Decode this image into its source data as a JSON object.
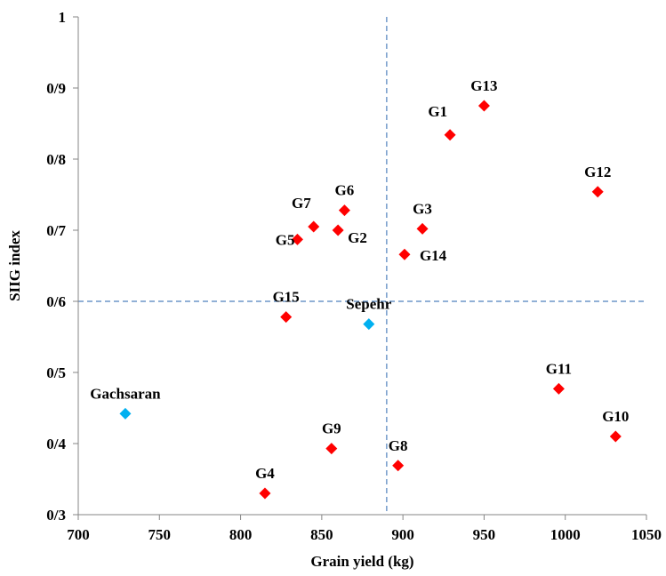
{
  "chart_data": {
    "type": "scatter",
    "xlabel": "Grain yield (kg)",
    "ylabel": "SIIG index",
    "xlim": [
      700,
      1050
    ],
    "ylim": [
      0.3,
      1
    ],
    "x_ticks": [
      700,
      750,
      800,
      850,
      900,
      950,
      1000,
      1050
    ],
    "y_ticks": [
      {
        "value": 0.3,
        "label": "0/3"
      },
      {
        "value": 0.4,
        "label": "0/4"
      },
      {
        "value": 0.5,
        "label": "0/5"
      },
      {
        "value": 0.6,
        "label": "0/6"
      },
      {
        "value": 0.7,
        "label": "0/7"
      },
      {
        "value": 0.8,
        "label": "0/8"
      },
      {
        "value": 0.9,
        "label": "0/9"
      },
      {
        "value": 1,
        "label": "1"
      }
    ],
    "reference_lines": {
      "x": 890,
      "y": 0.6
    },
    "grid": false,
    "colors": {
      "genotype": "#ff0000",
      "check": "#00b0f0",
      "reference_line": "#4f81bd"
    },
    "points": [
      {
        "label": "G1",
        "x": 929,
        "y": 0.834,
        "group": "genotype",
        "label_pos": "above-left"
      },
      {
        "label": "G2",
        "x": 860,
        "y": 0.7,
        "group": "genotype",
        "label_pos": "below-right"
      },
      {
        "label": "G3",
        "x": 912,
        "y": 0.702,
        "group": "genotype",
        "label_pos": "above"
      },
      {
        "label": "G4",
        "x": 815,
        "y": 0.33,
        "group": "genotype",
        "label_pos": "above"
      },
      {
        "label": "G5",
        "x": 835,
        "y": 0.687,
        "group": "genotype",
        "label_pos": "left"
      },
      {
        "label": "G6",
        "x": 864,
        "y": 0.728,
        "group": "genotype",
        "label_pos": "above"
      },
      {
        "label": "G7",
        "x": 845,
        "y": 0.705,
        "group": "genotype",
        "label_pos": "above-left"
      },
      {
        "label": "G8",
        "x": 897,
        "y": 0.369,
        "group": "genotype",
        "label_pos": "above"
      },
      {
        "label": "G9",
        "x": 856,
        "y": 0.393,
        "group": "genotype",
        "label_pos": "above"
      },
      {
        "label": "G10",
        "x": 1031,
        "y": 0.41,
        "group": "genotype",
        "label_pos": "above"
      },
      {
        "label": "G11",
        "x": 996,
        "y": 0.477,
        "group": "genotype",
        "label_pos": "above"
      },
      {
        "label": "G12",
        "x": 1020,
        "y": 0.754,
        "group": "genotype",
        "label_pos": "above"
      },
      {
        "label": "G13",
        "x": 950,
        "y": 0.875,
        "group": "genotype",
        "label_pos": "above"
      },
      {
        "label": "G14",
        "x": 901,
        "y": 0.666,
        "group": "genotype",
        "label_pos": "right"
      },
      {
        "label": "G15",
        "x": 828,
        "y": 0.578,
        "group": "genotype",
        "label_pos": "above"
      },
      {
        "label": "Sepehr",
        "x": 879,
        "y": 0.568,
        "group": "check",
        "label_pos": "above"
      },
      {
        "label": "Gachsaran",
        "x": 729,
        "y": 0.442,
        "group": "check",
        "label_pos": "above"
      }
    ]
  }
}
